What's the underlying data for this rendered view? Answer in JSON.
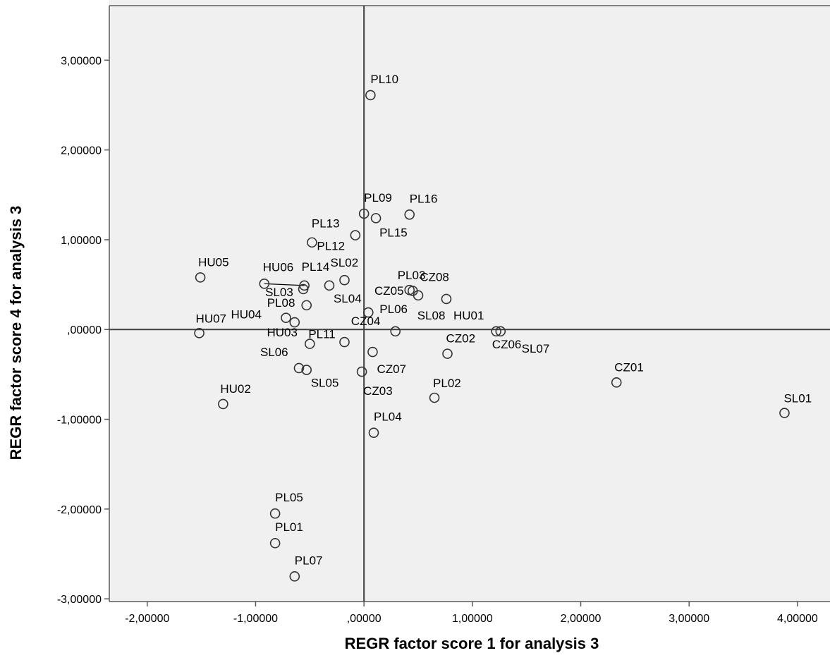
{
  "colors": {
    "plot_background": "#f0f0f0",
    "frame": "#5a5a5a",
    "marker_stroke": "#333333",
    "reference_line": "#404040"
  },
  "chart_data": {
    "type": "scatter",
    "xlabel": "REGR factor score   1 for analysis 3",
    "ylabel": "REGR factor score   4 for analysis 3",
    "xlim": [
      -2.35,
      4.3
    ],
    "ylim": [
      -3.03,
      3.67
    ],
    "x_ticks": [
      -2,
      -1,
      0,
      1,
      2,
      3,
      4
    ],
    "y_ticks": [
      -3,
      -2,
      -1,
      0,
      1,
      2,
      3
    ],
    "x_tick_labels": [
      "-2,00000",
      "-1,00000",
      ",00000",
      "1,00000",
      "2,00000",
      "3,00000",
      "4,00000"
    ],
    "y_tick_labels": [
      "-3,00000",
      "-2,00000",
      "-1,00000",
      ",00000",
      "1,00000",
      "2,00000",
      "3,00000"
    ],
    "reference_lines": {
      "x": 0,
      "y": 0
    },
    "grid": false,
    "marker": "open-circle",
    "points": [
      {
        "label": "PL10",
        "x": 0.06,
        "y": 2.61
      },
      {
        "label": "PL09",
        "x": 0.0,
        "y": 1.29
      },
      {
        "label": "PL16",
        "x": 0.42,
        "y": 1.28
      },
      {
        "label": "PL15",
        "x": 0.11,
        "y": 1.24
      },
      {
        "label": "PL13",
        "x": -0.08,
        "y": 1.05
      },
      {
        "label": "PL12",
        "x": -0.48,
        "y": 0.97
      },
      {
        "label": "HU05",
        "x": -1.51,
        "y": 0.58
      },
      {
        "label": "SL02",
        "x": -0.18,
        "y": 0.55
      },
      {
        "label": "HU06",
        "x": -0.92,
        "y": 0.51
      },
      {
        "label": "PL14",
        "x": -0.55,
        "y": 0.49
      },
      {
        "label": "SL03",
        "x": -0.56,
        "y": 0.45
      },
      {
        "label": "SL04",
        "x": -0.32,
        "y": 0.49
      },
      {
        "label": "PL03",
        "x": 0.42,
        "y": 0.44
      },
      {
        "label": "CZ08",
        "x": 0.45,
        "y": 0.43
      },
      {
        "label": "CZ05",
        "x": 0.5,
        "y": 0.38
      },
      {
        "label": "HU01",
        "x": 0.76,
        "y": 0.34
      },
      {
        "label": "PL08",
        "x": -0.53,
        "y": 0.27
      },
      {
        "label": "PL06",
        "x": 0.04,
        "y": 0.19
      },
      {
        "label": "HU04",
        "x": -0.72,
        "y": 0.13
      },
      {
        "label": "HU07",
        "x": -1.52,
        "y": -0.04
      },
      {
        "label": "CZ04",
        "x": -0.64,
        "y": 0.08
      },
      {
        "label": "HU03",
        "x": -0.18,
        "y": -0.14
      },
      {
        "label": "PL11",
        "x": -0.5,
        "y": -0.16
      },
      {
        "label": "SL08",
        "x": 0.29,
        "y": -0.02
      },
      {
        "label": "SL07",
        "x": 1.22,
        "y": -0.02
      },
      {
        "label": "CZ06",
        "x": 1.26,
        "y": -0.02
      },
      {
        "label": "CZ02",
        "x": 0.77,
        "y": -0.27
      },
      {
        "label": "CZ07",
        "x": 0.08,
        "y": -0.25
      },
      {
        "label": "SL06",
        "x": -0.6,
        "y": -0.43
      },
      {
        "label": "SL05",
        "x": -0.53,
        "y": -0.45
      },
      {
        "label": "CZ03",
        "x": -0.02,
        "y": -0.47
      },
      {
        "label": "CZ01",
        "x": 2.33,
        "y": -0.59
      },
      {
        "label": "PL02",
        "x": 0.65,
        "y": -0.76
      },
      {
        "label": "HU02",
        "x": -1.3,
        "y": -0.83
      },
      {
        "label": "SL01",
        "x": 3.88,
        "y": -0.93
      },
      {
        "label": "PL04",
        "x": 0.09,
        "y": -1.15
      },
      {
        "label": "PL05",
        "x": -0.82,
        "y": -2.05
      },
      {
        "label": "PL01",
        "x": -0.82,
        "y": -2.38
      },
      {
        "label": "PL07",
        "x": -0.64,
        "y": -2.75
      }
    ]
  }
}
